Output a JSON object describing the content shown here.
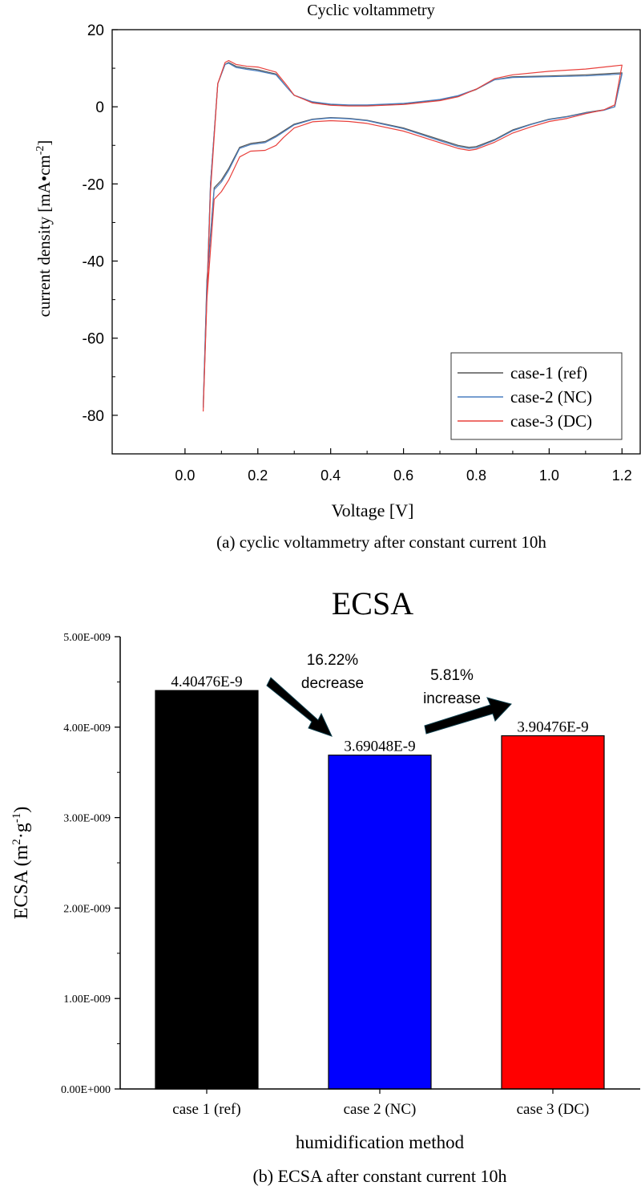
{
  "chart_data": [
    {
      "type": "line",
      "title": "Cyclic voltammetry",
      "xlabel": "Voltage [V]",
      "ylabel": "current density [mA•cm",
      "ylabel_sup": "-2",
      "ylabel_close": "]",
      "caption": "(a)  cyclic voltammetry after constant current 10h",
      "xlim": [
        -0.2,
        1.25
      ],
      "ylim": [
        -90,
        20
      ],
      "xticks": [
        0.0,
        0.2,
        0.4,
        0.6,
        0.8,
        1.0,
        1.2
      ],
      "xtick_labels": [
        "0.0",
        "0.2",
        "0.4",
        "0.6",
        "0.8",
        "1.0",
        "1.2"
      ],
      "yticks": [
        20,
        0,
        -20,
        -40,
        -60,
        -80
      ],
      "ytick_labels": [
        "20",
        "0",
        "-20",
        "-40",
        "-60",
        "-80"
      ],
      "legend_position": "bottom-right",
      "series": [
        {
          "name": "case-1 (ref)",
          "color": "#555555",
          "upper": {
            "x": [
              0.05,
              0.07,
              0.09,
              0.11,
              0.12,
              0.14,
              0.17,
              0.2,
              0.25,
              0.28,
              0.3,
              0.35,
              0.4,
              0.45,
              0.5,
              0.6,
              0.7,
              0.75,
              0.8,
              0.85,
              0.9,
              1.0,
              1.1,
              1.2
            ],
            "y": [
              -78,
              -20,
              6,
              11,
              11.5,
              10.5,
              10,
              9.6,
              8.5,
              5,
              3,
              1.2,
              0.6,
              0.4,
              0.4,
              0.8,
              1.8,
              2.8,
              4.5,
              7,
              7.8,
              8,
              8.3,
              8.8
            ]
          },
          "lower": {
            "x": [
              1.2,
              1.18,
              1.15,
              1.1,
              1.05,
              1.0,
              0.95,
              0.9,
              0.85,
              0.8,
              0.78,
              0.75,
              0.7,
              0.6,
              0.5,
              0.45,
              0.4,
              0.35,
              0.3,
              0.25,
              0.22,
              0.18,
              0.15,
              0.12,
              0.1,
              0.08,
              0.06,
              0.05
            ],
            "y": [
              8.8,
              0,
              -0.8,
              -1.5,
              -2.5,
              -3.2,
              -4.5,
              -6,
              -8.5,
              -10.3,
              -10.5,
              -10,
              -8.5,
              -5.5,
              -3.5,
              -3,
              -2.8,
              -3.2,
              -4.5,
              -7.5,
              -9,
              -9.5,
              -10.5,
              -16,
              -19,
              -21,
              -45,
              -78
            ]
          }
        },
        {
          "name": "case-2 (NC)",
          "color": "#4a7fc1",
          "upper": {
            "x": [
              0.05,
              0.07,
              0.09,
              0.11,
              0.12,
              0.14,
              0.17,
              0.2,
              0.25,
              0.28,
              0.3,
              0.35,
              0.4,
              0.45,
              0.5,
              0.6,
              0.7,
              0.75,
              0.8,
              0.85,
              0.9,
              1.0,
              1.1,
              1.2
            ],
            "y": [
              -78,
              -20,
              6,
              11,
              11.3,
              10.2,
              9.7,
              9.3,
              8.3,
              5,
              3,
              1.3,
              0.7,
              0.5,
              0.5,
              0.9,
              1.9,
              2.9,
              4.6,
              7,
              7.6,
              7.8,
              8.0,
              8.5
            ]
          },
          "lower": {
            "x": [
              1.2,
              1.18,
              1.15,
              1.1,
              1.05,
              1.0,
              0.95,
              0.9,
              0.85,
              0.8,
              0.78,
              0.75,
              0.7,
              0.6,
              0.5,
              0.45,
              0.4,
              0.35,
              0.3,
              0.25,
              0.22,
              0.18,
              0.15,
              0.12,
              0.1,
              0.08,
              0.06,
              0.05
            ],
            "y": [
              8.5,
              0,
              -0.9,
              -1.6,
              -2.6,
              -3.3,
              -4.6,
              -6.2,
              -8.7,
              -10.6,
              -10.8,
              -10.3,
              -8.8,
              -5.7,
              -3.6,
              -3.1,
              -2.9,
              -3.3,
              -4.7,
              -7.8,
              -9.3,
              -9.8,
              -10.8,
              -16.5,
              -19.5,
              -21.5,
              -46,
              -78
            ]
          }
        },
        {
          "name": "case-3 (DC)",
          "color": "#e8403c",
          "upper": {
            "x": [
              0.05,
              0.07,
              0.09,
              0.11,
              0.12,
              0.14,
              0.17,
              0.2,
              0.25,
              0.28,
              0.3,
              0.35,
              0.4,
              0.45,
              0.5,
              0.6,
              0.7,
              0.75,
              0.8,
              0.85,
              0.9,
              1.0,
              1.1,
              1.2
            ],
            "y": [
              -79,
              -22,
              6,
              11.5,
              12,
              11,
              10.5,
              10.3,
              9,
              5.5,
              3,
              1,
              0.4,
              0.2,
              0.2,
              0.6,
              1.6,
              2.6,
              4.6,
              7.3,
              8.3,
              9.2,
              9.8,
              10.8
            ]
          },
          "lower": {
            "x": [
              1.2,
              1.18,
              1.15,
              1.1,
              1.05,
              1.0,
              0.95,
              0.9,
              0.85,
              0.8,
              0.78,
              0.75,
              0.7,
              0.6,
              0.5,
              0.45,
              0.4,
              0.35,
              0.3,
              0.27,
              0.25,
              0.22,
              0.18,
              0.15,
              0.12,
              0.1,
              0.08,
              0.06,
              0.05
            ],
            "y": [
              10.8,
              0.5,
              -0.8,
              -1.8,
              -3,
              -3.8,
              -5.2,
              -6.8,
              -9.2,
              -11,
              -11.3,
              -10.8,
              -9.3,
              -6.3,
              -4.3,
              -3.8,
              -3.6,
              -3.9,
              -5.5,
              -8,
              -10,
              -11.3,
              -11.5,
              -13,
              -19,
              -22,
              -24,
              -50,
              -79
            ]
          }
        }
      ]
    },
    {
      "type": "bar",
      "title": "ECSA",
      "xlabel": "humidification method",
      "ylabel": "ECSA (m",
      "ylabel_sup1": "2",
      "ylabel_mid": "·g",
      "ylabel_sup2": "-1",
      "ylabel_close": ")",
      "caption": "(b) ECSA after constant current 10h",
      "ylim": [
        0,
        5e-09
      ],
      "yticks": [
        0,
        1e-09,
        2e-09,
        3e-09,
        4e-09,
        5e-09
      ],
      "ytick_labels": [
        "0.00E+000",
        "1.00E-009",
        "2.00E-009",
        "3.00E-009",
        "4.00E-009",
        "5.00E-009"
      ],
      "categories": [
        "case 1 (ref)",
        "case 2 (NC)",
        "case 3 (DC)"
      ],
      "values": [
        4.40476e-09,
        3.69048e-09,
        3.90476e-09
      ],
      "value_labels": [
        "4.40476E-9",
        "3.69048E-9",
        "3.90476E-9"
      ],
      "colors": [
        "#000000",
        "#0000ff",
        "#ff0000"
      ],
      "annotations": [
        {
          "line1": "16.22%",
          "line2": "decrease"
        },
        {
          "line1": "5.81%",
          "line2": "increase"
        }
      ]
    }
  ]
}
